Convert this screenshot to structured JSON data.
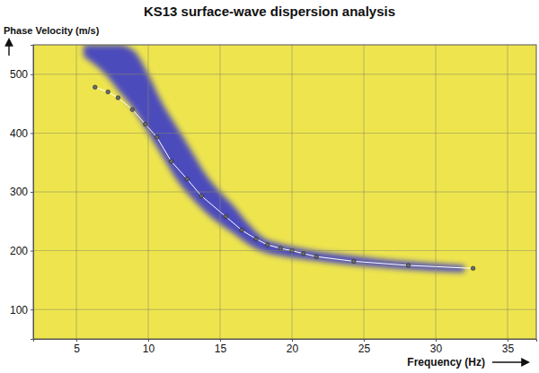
{
  "chart_data": {
    "type": "line",
    "title": "KS13 surface-wave dispersion analysis",
    "x_label": "Frequency (Hz)",
    "y_label": "Phase Velocity (m/s)",
    "xlim": [
      2,
      37
    ],
    "ylim": [
      50,
      550
    ],
    "xticks": [
      5,
      10,
      15,
      20,
      25,
      30,
      35
    ],
    "yticks": [
      100,
      200,
      300,
      400,
      500
    ],
    "grid": true,
    "series": [
      {
        "type": "area",
        "color": "#3a3ac8",
        "x": [
          5.5,
          7,
          8,
          9,
          10,
          11,
          12,
          13,
          14,
          15,
          16,
          17,
          18,
          19,
          20,
          22,
          24,
          26,
          28,
          30,
          32
        ],
        "values": [
          550,
          550,
          550,
          540,
          500,
          450,
          410,
          370,
          330,
          300,
          275,
          245,
          222,
          213,
          207,
          198,
          192,
          186,
          182,
          178,
          175
        ],
        "lower": [
          530,
          500,
          470,
          440,
          400,
          360,
          320,
          290,
          265,
          245,
          228,
          210,
          198,
          192,
          188,
          182,
          176,
          172,
          168,
          165,
          163
        ]
      },
      {
        "type": "line",
        "color": "#ffffff",
        "marker": "circle",
        "x": [
          6.3,
          7.2,
          7.9,
          8.9,
          9.8,
          10.6,
          11.6,
          12.7,
          13.7,
          15.4,
          16.5,
          17.5,
          18.3,
          19.2,
          20,
          20.8,
          21.7,
          24.3,
          28.1,
          32.6
        ],
        "values": [
          478,
          470,
          460,
          440,
          415,
          393,
          352,
          322,
          293,
          258,
          235,
          220,
          210,
          204,
          200,
          195,
          190,
          182,
          175,
          170
        ]
      }
    ]
  }
}
